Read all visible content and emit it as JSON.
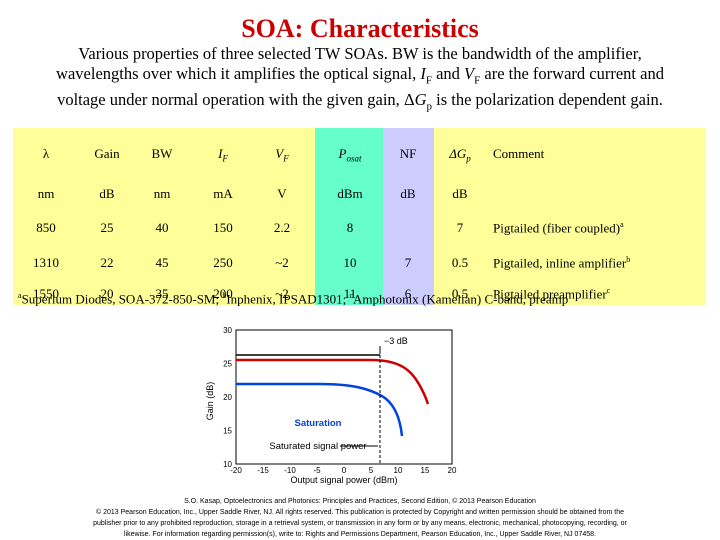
{
  "title": "SOA: Characteristics",
  "description": {
    "line1": "Various properties of three selected TW SOAs. BW is the bandwidth of the amplifier,",
    "line2_a": "wavelengths over which it amplifies the optical signal, ",
    "line2_if": "I",
    "line2_if_sub": "F",
    "line2_and": " and ",
    "line2_vf": "V",
    "line2_vf_sub": "F",
    "line2_b": " are the forward current and",
    "line3_a": "voltage under normal operation with the given gain, ",
    "line3_delta": "Δ",
    "line3_g": "G",
    "line3_g_sub": "p",
    "line3_b": " is the polarization dependent gain."
  },
  "table": {
    "headers": [
      {
        "main": "λ",
        "sub": ""
      },
      {
        "main": "Gain",
        "sub": ""
      },
      {
        "main": "BW",
        "sub": ""
      },
      {
        "main": "I",
        "sub": "F"
      },
      {
        "main": "V",
        "sub": "F"
      },
      {
        "main": "P",
        "sub": "osat"
      },
      {
        "main": "NF",
        "sub": ""
      },
      {
        "main": "ΔG",
        "sub": "p"
      },
      {
        "main": "Comment",
        "sub": ""
      }
    ],
    "units": [
      "nm",
      "dB",
      "nm",
      "mA",
      "V",
      "dBm",
      "dB",
      "dB",
      ""
    ],
    "rows": [
      {
        "cells": [
          "850",
          "25",
          "40",
          "150",
          "2.2",
          "8",
          "",
          "7"
        ],
        "comment": "Pigtailed (fiber coupled)",
        "mark": "a"
      },
      {
        "cells": [
          "1310",
          "22",
          "45",
          "250",
          "~2",
          "10",
          "7",
          "0.5"
        ],
        "comment": "Pigtailed, inline amplifier",
        "mark": "b"
      },
      {
        "cells": [
          "1550",
          "20",
          "35",
          "200",
          "~2",
          "11",
          "6",
          "0.5"
        ],
        "comment": "Pigtailed preamplifier",
        "mark": "c"
      }
    ]
  },
  "footnote": "aSuperlum Diodes, SOA-372-850-SM; bInphenix, IPSAD1301; cAmphotonix (Kamelian) C-band, preamp",
  "figure": {
    "y_axis_label": "Gain (dB)",
    "x_axis_label": "Output signal power (dBm)",
    "y_ticks": [
      "30",
      "25",
      "20",
      "15",
      "10"
    ],
    "x_ticks": [
      "-20",
      "-15",
      "-10",
      "-5",
      "0",
      "5",
      "10",
      "15",
      "20"
    ],
    "marker_3db": "−3 dB",
    "label_saturation": "Saturation",
    "label_saturated_power": "Saturated signal power",
    "colors": {
      "red_curve": "#cc0000",
      "blue_curve": "#0044dd",
      "black_curve": "#000000"
    }
  },
  "credits": {
    "line1": "S.O. Kasap, Optoelectronics and Photonics: Principles and Practices, Second Edition, © 2013 Pearson Education",
    "line2": "© 2013 Pearson Education, Inc., Upper Saddle River, NJ. All rights reserved. This publication is protected by Copyright and written permission should be obtained from the",
    "line3": "publisher prior to any prohibited reproduction, storage in a retrieval system, or transmission in any form or by any means, electronic, mechanical, photocopying, recording, or",
    "line4": "likewise. For information regarding permission(s), write to: Rights and Permissions Department, Pearson Education, Inc., Upper Saddle River, NJ 07458."
  }
}
